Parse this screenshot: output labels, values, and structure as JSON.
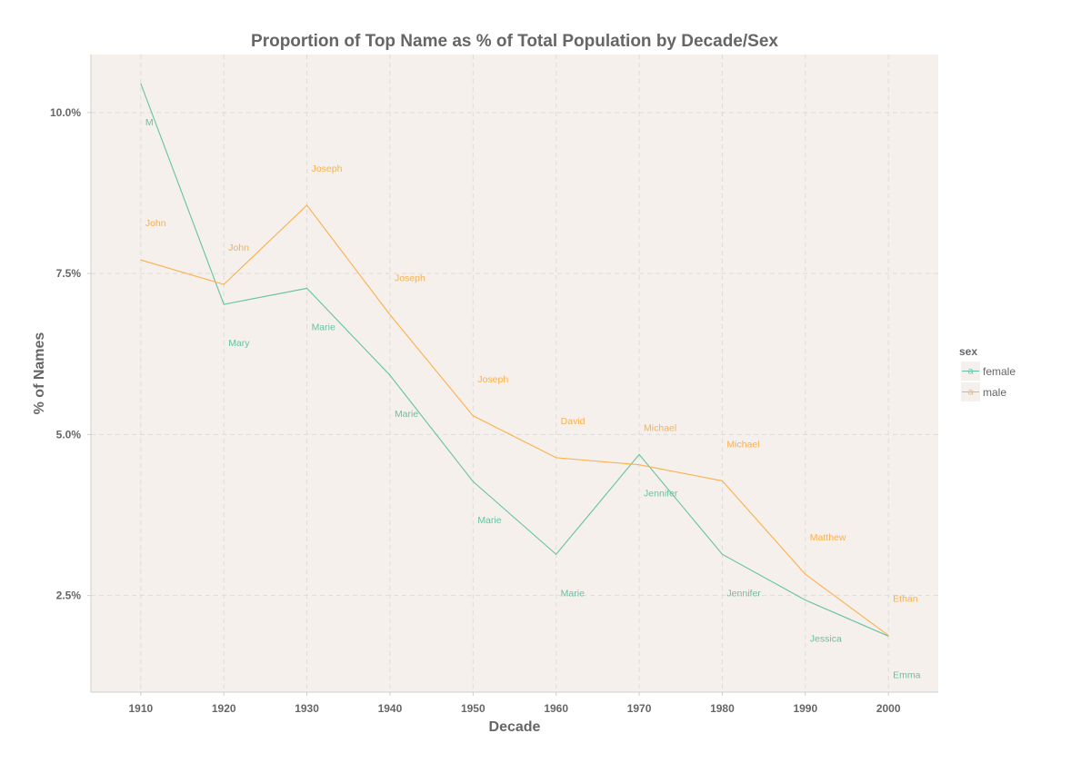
{
  "chart_data": {
    "type": "line",
    "title": "Proportion of Top Name as % of Total Population by Decade/Sex",
    "xlabel": "Decade",
    "ylabel": "% of Names",
    "x": [
      1910,
      1920,
      1930,
      1940,
      1950,
      1960,
      1970,
      1980,
      1990,
      2000
    ],
    "xticks": [
      "1910",
      "1920",
      "1930",
      "1940",
      "1950",
      "1960",
      "1970",
      "1980",
      "1990",
      "2000"
    ],
    "yticks": [
      {
        "value": 2.5,
        "label": "2.5%"
      },
      {
        "value": 5.0,
        "label": "5.0%"
      },
      {
        "value": 7.5,
        "label": "7.5%"
      },
      {
        "value": 10.0,
        "label": "10.0%"
      }
    ],
    "xlim": [
      1904,
      2006
    ],
    "ylim": [
      1.0,
      10.9
    ],
    "grid": true,
    "legend": {
      "title": "sex",
      "placement": "right"
    },
    "series": [
      {
        "name": "female",
        "color": "#66c2a5",
        "values": [
          10.45,
          7.02,
          7.27,
          5.92,
          4.27,
          3.14,
          4.69,
          3.14,
          2.43,
          1.87
        ],
        "labels": [
          "M",
          "Mary",
          "Marie",
          "Marie",
          "Marie",
          "Marie",
          "Jennifer",
          "Jennifer",
          "Jessica",
          "Emma"
        ]
      },
      {
        "name": "male",
        "color": "#fbb04b",
        "values": [
          7.71,
          7.33,
          8.56,
          6.86,
          5.29,
          4.64,
          4.53,
          4.28,
          2.83,
          1.88
        ],
        "labels": [
          "John",
          "John",
          "Joseph",
          "Joseph",
          "Joseph",
          "David",
          "Michael",
          "Michael",
          "Matthew",
          "Ethan"
        ]
      }
    ]
  }
}
